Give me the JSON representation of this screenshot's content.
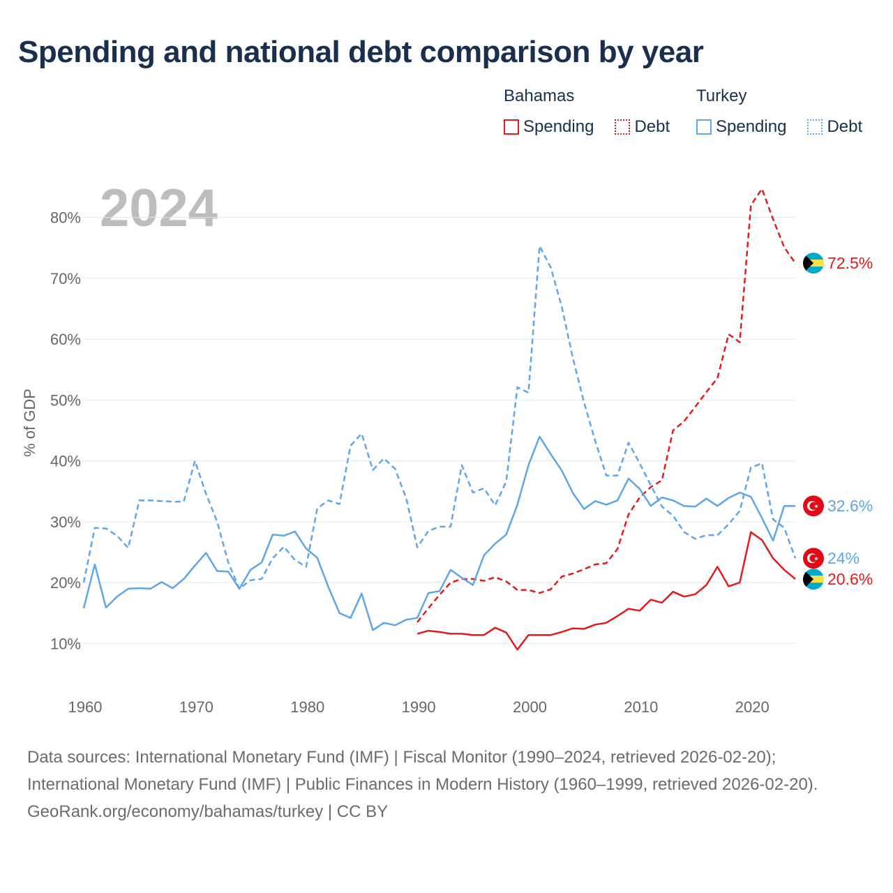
{
  "title": "Spending and national debt comparison by year",
  "legend": {
    "groups": [
      {
        "country": "Bahamas",
        "color": "#e31a1c",
        "items": [
          {
            "label": "Spending",
            "style": "solid"
          },
          {
            "label": "Debt",
            "style": "dotted"
          }
        ]
      },
      {
        "country": "Turkey",
        "color": "#5ea6e8",
        "items": [
          {
            "label": "Spending",
            "style": "solid"
          },
          {
            "label": "Debt",
            "style": "dotted"
          }
        ]
      }
    ]
  },
  "footer": {
    "sources": "Data sources: International Monetary Fund (IMF) | Fiscal Monitor (1990–2024, retrieved 2026-02-20); International Monetary Fund (IMF) | Public Finances in Modern History (1960–1999, retrieved 2026-02-20).",
    "credit": "GeoRank.org/economy/bahamas/turkey | CC BY"
  },
  "chart_data": {
    "type": "line",
    "title": "Spending and national debt comparison by year",
    "year_label": "2024",
    "xlabel": "",
    "ylabel": "% of GDP",
    "xlim": [
      1960,
      2024
    ],
    "ylim": [
      5,
      85
    ],
    "xticks": [
      1960,
      1970,
      1980,
      1990,
      2000,
      2010,
      2020
    ],
    "yticks": [
      10,
      20,
      30,
      40,
      50,
      60,
      70,
      80
    ],
    "ytick_labels": [
      "10%",
      "20%",
      "30%",
      "40%",
      "50%",
      "60%",
      "70%",
      "80%"
    ],
    "grid": true,
    "series": [
      {
        "name": "Bahamas Spending",
        "country": "Bahamas",
        "metric": "Spending",
        "color": "#e31a1c",
        "dash": "solid",
        "flag": "bahamas",
        "end_label": "20.6%",
        "x": [
          1990,
          1991,
          1992,
          1993,
          1994,
          1995,
          1996,
          1997,
          1998,
          1999,
          2000,
          2001,
          2002,
          2003,
          2004,
          2005,
          2006,
          2007,
          2008,
          2009,
          2010,
          2011,
          2012,
          2013,
          2014,
          2015,
          2016,
          2017,
          2018,
          2019,
          2020,
          2021,
          2022,
          2023,
          2024
        ],
        "y": [
          11.6,
          12.1,
          11.9,
          11.6,
          11.6,
          11.4,
          11.4,
          12.6,
          11.8,
          9.0,
          11.4,
          11.4,
          11.4,
          11.9,
          12.5,
          12.4,
          13.1,
          13.4,
          14.5,
          15.7,
          15.4,
          17.2,
          16.7,
          18.5,
          17.7,
          18.1,
          19.6,
          22.6,
          19.4,
          20.0,
          28.3,
          27.0,
          24.0,
          22.1,
          20.6
        ]
      },
      {
        "name": "Bahamas Debt",
        "country": "Bahamas",
        "metric": "Debt",
        "color": "#e31a1c",
        "dash": "dashed",
        "flag": "bahamas",
        "end_label": "72.5%",
        "x": [
          1990,
          1991,
          1992,
          1993,
          1994,
          1995,
          1996,
          1997,
          1998,
          1999,
          2000,
          2001,
          2002,
          2003,
          2004,
          2005,
          2006,
          2007,
          2008,
          2009,
          2010,
          2011,
          2012,
          2013,
          2014,
          2015,
          2016,
          2017,
          2018,
          2019,
          2020,
          2021,
          2022,
          2023,
          2024
        ],
        "y": [
          13.5,
          15.8,
          18.0,
          20.0,
          20.6,
          20.6,
          20.3,
          20.9,
          20.2,
          18.8,
          18.8,
          18.3,
          18.9,
          21.0,
          21.5,
          22.2,
          23.0,
          23.2,
          25.5,
          31.2,
          34.0,
          35.7,
          36.8,
          45.0,
          46.5,
          48.9,
          51.3,
          53.6,
          60.8,
          59.5,
          82.0,
          84.7,
          79.7,
          75.1,
          72.5
        ]
      },
      {
        "name": "Turkey Spending",
        "country": "Turkey",
        "metric": "Spending",
        "color": "#5ea6e8",
        "dash": "solid",
        "flag": "turkey",
        "end_label": "32.6%",
        "x": [
          1960,
          1961,
          1962,
          1963,
          1964,
          1965,
          1966,
          1967,
          1968,
          1969,
          1970,
          1971,
          1972,
          1973,
          1974,
          1975,
          1976,
          1977,
          1978,
          1979,
          1980,
          1981,
          1982,
          1983,
          1984,
          1985,
          1986,
          1987,
          1988,
          1989,
          1990,
          1991,
          1992,
          1993,
          1994,
          1995,
          1996,
          1997,
          1998,
          1999,
          2000,
          2001,
          2002,
          2003,
          2004,
          2005,
          2006,
          2007,
          2008,
          2009,
          2010,
          2011,
          2012,
          2013,
          2014,
          2015,
          2016,
          2017,
          2018,
          2019,
          2020,
          2021,
          2022,
          2023,
          2024
        ],
        "y": [
          15.8,
          23.0,
          15.9,
          17.7,
          19.0,
          19.1,
          19.0,
          20.1,
          19.1,
          20.6,
          22.8,
          24.9,
          21.9,
          21.8,
          19.0,
          22.1,
          23.3,
          27.9,
          27.7,
          28.4,
          25.6,
          24.1,
          19.3,
          15.0,
          14.2,
          18.2,
          12.2,
          13.4,
          13.0,
          13.9,
          14.2,
          18.3,
          18.6,
          22.1,
          20.8,
          19.6,
          24.5,
          26.4,
          27.9,
          32.8,
          39.3,
          44.0,
          41.1,
          38.4,
          34.7,
          32.1,
          33.4,
          32.8,
          33.5,
          37.1,
          35.4,
          32.6,
          34.0,
          33.5,
          32.6,
          32.5,
          33.8,
          32.6,
          33.9,
          34.8,
          34.1,
          30.6,
          26.9,
          32.6,
          32.6
        ]
      },
      {
        "name": "Turkey Debt",
        "country": "Turkey",
        "metric": "Debt",
        "color": "#5ea6e8",
        "dash": "dashed",
        "flag": "turkey",
        "end_label": "24%",
        "x": [
          1960,
          1961,
          1962,
          1963,
          1964,
          1965,
          1966,
          1967,
          1968,
          1969,
          1970,
          1971,
          1972,
          1973,
          1974,
          1975,
          1976,
          1977,
          1978,
          1979,
          1980,
          1981,
          1982,
          1983,
          1984,
          1985,
          1986,
          1987,
          1988,
          1989,
          1990,
          1991,
          1992,
          1993,
          1994,
          1995,
          1996,
          1997,
          1998,
          1999,
          2000,
          2001,
          2002,
          2003,
          2004,
          2005,
          2006,
          2007,
          2008,
          2009,
          2010,
          2011,
          2012,
          2013,
          2014,
          2015,
          2016,
          2017,
          2018,
          2019,
          2020,
          2021,
          2022,
          2023,
          2024
        ],
        "y": [
          20.0,
          29.0,
          28.9,
          27.7,
          25.7,
          33.5,
          33.5,
          33.4,
          33.3,
          33.3,
          40.0,
          34.6,
          30.0,
          23.3,
          19.0,
          20.4,
          20.6,
          24.0,
          25.9,
          23.7,
          22.6,
          32.2,
          33.5,
          32.9,
          42.5,
          44.5,
          38.5,
          40.4,
          38.7,
          33.9,
          25.8,
          28.5,
          29.2,
          29.2,
          39.3,
          34.8,
          35.5,
          32.7,
          36.6,
          52.1,
          51.2,
          75.3,
          71.8,
          65.3,
          56.8,
          49.6,
          43.3,
          37.6,
          37.6,
          43.0,
          39.6,
          36.0,
          32.5,
          31.0,
          28.3,
          27.2,
          27.8,
          27.8,
          29.6,
          31.8,
          38.9,
          39.6,
          30.4,
          29.0,
          24.0
        ]
      }
    ]
  }
}
